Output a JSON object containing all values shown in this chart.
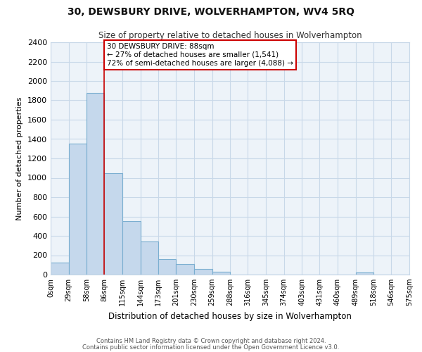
{
  "title": "30, DEWSBURY DRIVE, WOLVERHAMPTON, WV4 5RQ",
  "subtitle": "Size of property relative to detached houses in Wolverhampton",
  "xlabel": "Distribution of detached houses by size in Wolverhampton",
  "ylabel": "Number of detached properties",
  "bar_values": [
    125,
    1350,
    1880,
    1050,
    550,
    340,
    160,
    110,
    60,
    30,
    0,
    0,
    0,
    0,
    0,
    0,
    0,
    20,
    0,
    0
  ],
  "bin_edges": [
    0,
    29,
    58,
    86,
    115,
    144,
    173,
    201,
    230,
    259,
    288,
    316,
    345,
    374,
    403,
    431,
    460,
    489,
    518,
    546,
    575
  ],
  "tick_labels": [
    "0sqm",
    "29sqm",
    "58sqm",
    "86sqm",
    "115sqm",
    "144sqm",
    "173sqm",
    "201sqm",
    "230sqm",
    "259sqm",
    "288sqm",
    "316sqm",
    "345sqm",
    "374sqm",
    "403sqm",
    "431sqm",
    "460sqm",
    "489sqm",
    "518sqm",
    "546sqm",
    "575sqm"
  ],
  "bar_color": "#c5d8ec",
  "bar_edge_color": "#7aaed0",
  "vline_x": 86,
  "vline_color": "#cc0000",
  "ylim": [
    0,
    2400
  ],
  "yticks": [
    0,
    200,
    400,
    600,
    800,
    1000,
    1200,
    1400,
    1600,
    1800,
    2000,
    2200,
    2400
  ],
  "annotation_title": "30 DEWSBURY DRIVE: 88sqm",
  "annotation_line1": "← 27% of detached houses are smaller (1,541)",
  "annotation_line2": "72% of semi-detached houses are larger (4,088) →",
  "annotation_box_color": "#ffffff",
  "annotation_box_edge": "#cc0000",
  "footer1": "Contains HM Land Registry data © Crown copyright and database right 2024.",
  "footer2": "Contains public sector information licensed under the Open Government Licence v3.0.",
  "bg_color": "#ffffff",
  "grid_color": "#c8d8e8",
  "plot_bg_color": "#edf3f9"
}
